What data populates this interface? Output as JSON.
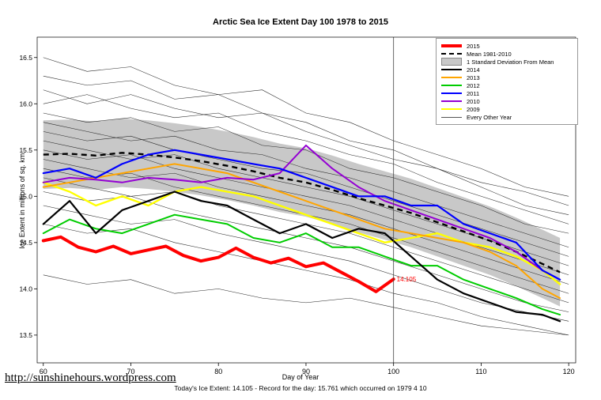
{
  "page": {
    "title": "Arctic Sea Ice Extent Day 100 1978 to 2015",
    "footer_url": "http://sunshinehours.wordpress.com",
    "footer_note": "Today's Ice Extent: 14.105  -  Record for the day: 15.761 which occurred on 1979 4 10"
  },
  "chart_data": {
    "type": "line",
    "title": "Arctic Sea Ice Extent Day 100 1978 to 2015",
    "xlabel": "Day of Year",
    "ylabel": "Ice Extent in millions of sq. km.",
    "xlim": [
      59.3,
      120.8
    ],
    "ylim": [
      13.2,
      16.72
    ],
    "xticks": [
      60,
      70,
      80,
      90,
      100,
      110,
      120
    ],
    "yticks": [
      "13.5",
      "14.0",
      "14.5",
      "15.0",
      "15.5",
      "16.0",
      "16.5"
    ],
    "grid": false,
    "legend_position": "top-right",
    "vline_x": 100,
    "annotation": {
      "x": 100,
      "y": 14.105,
      "text": "14.105",
      "color": "#ff0000"
    },
    "band": {
      "name": "1 Standard Deviation From Mean",
      "color": "#c8c8c8",
      "x": [
        60,
        63,
        66,
        69,
        72,
        75,
        78,
        81,
        84,
        87,
        90,
        93,
        96,
        99,
        102,
        105,
        108,
        111,
        114,
        117,
        119
      ],
      "upper": [
        15.82,
        15.83,
        15.81,
        15.84,
        15.82,
        15.79,
        15.75,
        15.7,
        15.64,
        15.57,
        15.52,
        15.44,
        15.35,
        15.27,
        15.19,
        15.09,
        14.99,
        14.89,
        14.77,
        14.64,
        14.55
      ],
      "lower": [
        15.08,
        15.09,
        15.07,
        15.1,
        15.08,
        15.05,
        15.01,
        14.96,
        14.9,
        14.83,
        14.78,
        14.7,
        14.61,
        14.53,
        14.45,
        14.35,
        14.25,
        14.15,
        14.03,
        13.9,
        13.81
      ]
    },
    "mean_line": {
      "name": "Mean 1981-2010",
      "color": "#000000",
      "width": 2.4,
      "dash": true,
      "x": [
        60,
        63,
        66,
        69,
        72,
        75,
        78,
        81,
        84,
        87,
        90,
        93,
        96,
        99,
        102,
        105,
        108,
        111,
        114,
        117,
        119
      ],
      "y": [
        15.45,
        15.46,
        15.44,
        15.47,
        15.45,
        15.42,
        15.38,
        15.33,
        15.27,
        15.2,
        15.15,
        15.07,
        14.98,
        14.9,
        14.82,
        14.72,
        14.62,
        14.52,
        14.4,
        14.27,
        14.18
      ]
    },
    "series": [
      {
        "name": "2009",
        "color": "#ffff00",
        "width": 2.4,
        "x": [
          60,
          63,
          66,
          69,
          72,
          75,
          78,
          81,
          84,
          87,
          90,
          93,
          96,
          99,
          102,
          105,
          108,
          111,
          114,
          117,
          119
        ],
        "y": [
          15.15,
          15.05,
          14.9,
          15.0,
          14.9,
          15.05,
          15.1,
          15.05,
          15.0,
          14.9,
          14.8,
          14.7,
          14.6,
          14.5,
          14.55,
          14.6,
          14.5,
          14.45,
          14.35,
          14.2,
          14.05
        ]
      },
      {
        "name": "2013",
        "color": "#ffa500",
        "width": 2,
        "x": [
          60,
          63,
          66,
          69,
          72,
          75,
          78,
          81,
          84,
          87,
          90,
          93,
          96,
          99,
          102,
          105,
          108,
          111,
          114,
          117,
          119
        ],
        "y": [
          15.1,
          15.15,
          15.2,
          15.25,
          15.3,
          15.35,
          15.3,
          15.25,
          15.15,
          15.05,
          14.95,
          14.85,
          14.75,
          14.65,
          14.6,
          14.55,
          14.5,
          14.4,
          14.25,
          14.0,
          13.9
        ]
      },
      {
        "name": "2012",
        "color": "#00cc00",
        "width": 2,
        "x": [
          60,
          63,
          66,
          69,
          72,
          75,
          78,
          81,
          84,
          87,
          90,
          93,
          96,
          99,
          102,
          105,
          108,
          111,
          114,
          117,
          119
        ],
        "y": [
          14.6,
          14.75,
          14.65,
          14.6,
          14.7,
          14.8,
          14.75,
          14.7,
          14.55,
          14.5,
          14.6,
          14.45,
          14.45,
          14.35,
          14.25,
          14.25,
          14.1,
          14.0,
          13.9,
          13.78,
          13.72
        ]
      },
      {
        "name": "2010",
        "color": "#9400d3",
        "width": 2,
        "x": [
          60,
          63,
          66,
          69,
          72,
          75,
          78,
          81,
          84,
          87,
          90,
          93,
          96,
          99,
          102,
          105,
          108,
          111,
          114,
          117,
          119
        ],
        "y": [
          15.15,
          15.2,
          15.18,
          15.15,
          15.2,
          15.18,
          15.15,
          15.2,
          15.18,
          15.25,
          15.55,
          15.3,
          15.1,
          14.95,
          14.85,
          14.75,
          14.65,
          14.55,
          14.4,
          14.2,
          14.1
        ]
      },
      {
        "name": "2011",
        "color": "#0000ff",
        "width": 2.2,
        "x": [
          60,
          63,
          66,
          69,
          72,
          75,
          78,
          81,
          84,
          87,
          90,
          93,
          96,
          99,
          102,
          105,
          108,
          111,
          114,
          117,
          119
        ],
        "y": [
          15.25,
          15.3,
          15.2,
          15.35,
          15.45,
          15.5,
          15.45,
          15.4,
          15.35,
          15.3,
          15.2,
          15.1,
          15.0,
          15.0,
          14.9,
          14.9,
          14.7,
          14.6,
          14.5,
          14.2,
          14.1
        ]
      },
      {
        "name": "2014",
        "color": "#000000",
        "width": 2.2,
        "x": [
          60,
          63,
          66,
          69,
          72,
          75,
          78,
          81,
          84,
          87,
          90,
          93,
          96,
          99,
          102,
          105,
          108,
          111,
          114,
          117,
          119
        ],
        "y": [
          14.7,
          14.95,
          14.6,
          14.85,
          14.95,
          15.05,
          14.95,
          14.9,
          14.75,
          14.6,
          14.7,
          14.55,
          14.65,
          14.6,
          14.35,
          14.1,
          13.95,
          13.85,
          13.75,
          13.72,
          13.65
        ]
      },
      {
        "name": "2015",
        "color": "#ff0000",
        "width": 4,
        "x": [
          60,
          62,
          64,
          66,
          68,
          70,
          72,
          74,
          76,
          78,
          80,
          82,
          84,
          86,
          88,
          90,
          92,
          94,
          96,
          98,
          100
        ],
        "y": [
          14.52,
          14.56,
          14.45,
          14.4,
          14.46,
          14.38,
          14.42,
          14.46,
          14.36,
          14.3,
          14.34,
          14.44,
          14.34,
          14.28,
          14.33,
          14.24,
          14.28,
          14.18,
          14.08,
          13.97,
          14.105
        ]
      }
    ],
    "background_series": {
      "name": "Every Other Year",
      "color": "#2a2a2a",
      "width": 0.55,
      "x": [
        60,
        65,
        70,
        75,
        80,
        85,
        90,
        95,
        100,
        105,
        110,
        115,
        120
      ],
      "lines": [
        [
          16.5,
          16.35,
          16.4,
          16.2,
          16.1,
          16.15,
          15.9,
          15.8,
          15.6,
          15.45,
          15.3,
          15.1,
          15.0
        ],
        [
          16.3,
          16.2,
          16.25,
          16.05,
          16.1,
          15.9,
          15.8,
          15.6,
          15.5,
          15.3,
          15.15,
          15.05,
          14.9
        ],
        [
          16.15,
          16.0,
          16.1,
          15.95,
          15.85,
          15.9,
          15.7,
          15.55,
          15.4,
          15.3,
          15.1,
          14.9,
          14.8
        ],
        [
          16.0,
          16.1,
          15.95,
          15.85,
          15.9,
          15.7,
          15.6,
          15.45,
          15.35,
          15.15,
          15.0,
          14.85,
          14.7
        ],
        [
          15.9,
          15.8,
          15.85,
          15.7,
          15.75,
          15.55,
          15.5,
          15.3,
          15.2,
          15.05,
          14.9,
          14.7,
          14.6
        ],
        [
          15.8,
          15.7,
          15.6,
          15.65,
          15.5,
          15.45,
          15.3,
          15.2,
          15.05,
          14.9,
          14.75,
          14.6,
          14.45
        ],
        [
          15.7,
          15.6,
          15.65,
          15.5,
          15.4,
          15.3,
          15.25,
          15.1,
          14.95,
          14.8,
          14.65,
          14.5,
          14.35
        ],
        [
          15.6,
          15.5,
          15.4,
          15.45,
          15.3,
          15.2,
          15.1,
          15.0,
          14.85,
          14.7,
          14.55,
          14.4,
          14.25
        ],
        [
          15.5,
          15.4,
          15.45,
          15.3,
          15.2,
          15.1,
          15.0,
          14.9,
          14.75,
          14.6,
          14.45,
          14.3,
          14.15
        ],
        [
          15.4,
          15.3,
          15.2,
          15.25,
          15.1,
          15.0,
          14.9,
          14.8,
          14.65,
          14.5,
          14.35,
          14.2,
          14.05
        ],
        [
          15.3,
          15.2,
          15.25,
          15.1,
          15.0,
          14.9,
          14.8,
          14.7,
          14.55,
          14.4,
          14.25,
          14.1,
          13.95
        ],
        [
          15.2,
          15.1,
          15.0,
          15.05,
          14.9,
          14.8,
          14.7,
          14.6,
          14.45,
          14.3,
          14.15,
          14.0,
          13.85
        ],
        [
          15.05,
          14.95,
          15.0,
          14.85,
          14.75,
          14.65,
          14.55,
          14.45,
          14.3,
          14.15,
          14.0,
          13.85,
          13.75
        ],
        [
          14.9,
          14.8,
          14.7,
          14.75,
          14.6,
          14.5,
          14.4,
          14.3,
          14.15,
          14.0,
          13.85,
          13.75,
          13.65
        ],
        [
          14.7,
          14.6,
          14.65,
          14.5,
          14.4,
          14.3,
          14.2,
          14.1,
          13.95,
          13.85,
          13.7,
          13.6,
          13.5
        ],
        [
          14.15,
          14.05,
          14.1,
          13.95,
          14.0,
          13.9,
          13.85,
          13.9,
          13.8,
          13.7,
          13.6,
          13.55,
          13.5
        ]
      ]
    },
    "legend": [
      {
        "label": "2015",
        "type": "line",
        "color": "#ff0000",
        "width": 4,
        "dash": false
      },
      {
        "label": "Mean 1981-2010",
        "type": "line",
        "color": "#000000",
        "width": 2.4,
        "dash": true
      },
      {
        "label": "1 Standard Deviation From Mean",
        "type": "box",
        "color": "#c8c8c8",
        "width": 0,
        "dash": false
      },
      {
        "label": "2014",
        "type": "line",
        "color": "#000000",
        "width": 2.2,
        "dash": false
      },
      {
        "label": "2013",
        "type": "line",
        "color": "#ffa500",
        "width": 2,
        "dash": false
      },
      {
        "label": "2012",
        "type": "line",
        "color": "#00cc00",
        "width": 2,
        "dash": false
      },
      {
        "label": "2011",
        "type": "line",
        "color": "#0000ff",
        "width": 2.2,
        "dash": false
      },
      {
        "label": "2010",
        "type": "line",
        "color": "#9400d3",
        "width": 2,
        "dash": false
      },
      {
        "label": "2009",
        "type": "line",
        "color": "#ffff00",
        "width": 2.4,
        "dash": false
      },
      {
        "label": "Every Other Year",
        "type": "line",
        "color": "#555555",
        "width": 0.8,
        "dash": false
      }
    ]
  }
}
